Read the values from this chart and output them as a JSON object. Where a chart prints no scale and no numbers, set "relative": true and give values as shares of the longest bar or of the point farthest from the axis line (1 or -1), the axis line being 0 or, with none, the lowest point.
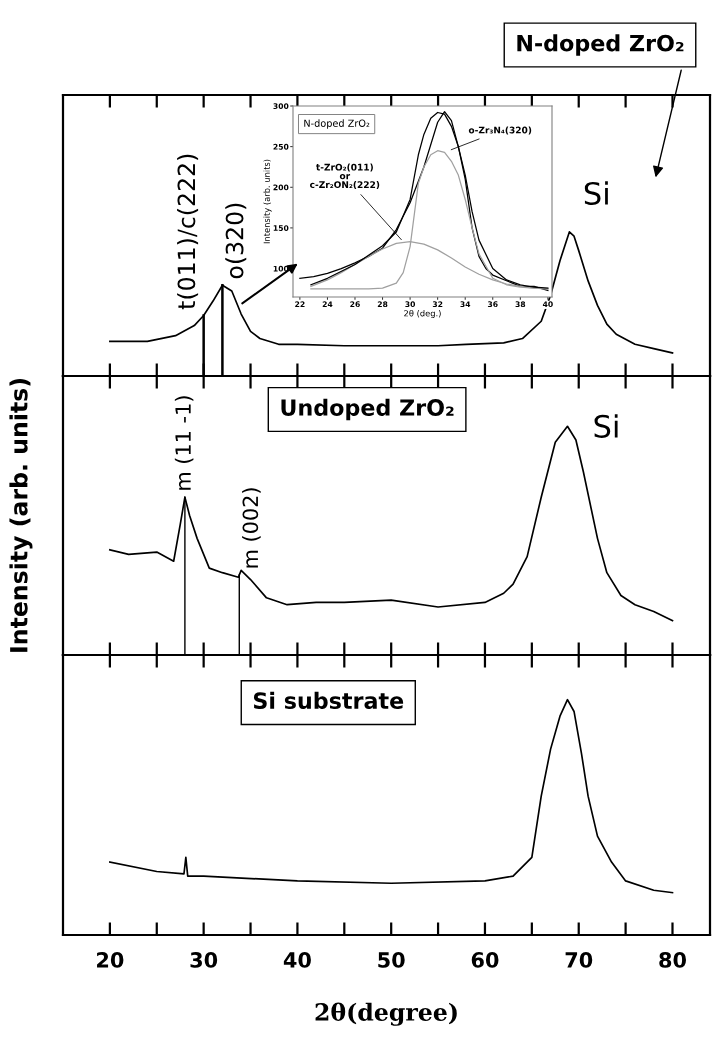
{
  "chart_data": [
    {
      "type": "line",
      "relative": true,
      "tick_labels": false,
      "xlim": [
        15,
        84
      ],
      "xticks": [
        20,
        {
          "value": 25,
          "label": null
        },
        30,
        {
          "value": 35,
          "label": null
        },
        40,
        {
          "value": 45,
          "label": null
        },
        50,
        {
          "value": 55,
          "label": null
        },
        60,
        {
          "value": 65,
          "label": null
        },
        70,
        {
          "value": 75,
          "label": null
        },
        80
      ],
      "x": [
        20,
        24,
        27,
        29,
        30,
        31,
        32,
        33,
        34,
        35,
        36,
        38,
        40,
        45,
        50,
        55,
        58,
        62,
        64,
        66,
        67,
        68,
        69,
        69.5,
        70,
        71,
        72,
        73,
        74,
        76,
        78,
        80
      ],
      "series": [
        {
          "color": "#000000",
          "values": [
            0.24,
            0.24,
            0.28,
            0.35,
            0.42,
            0.52,
            0.63,
            0.59,
            0.43,
            0.31,
            0.26,
            0.22,
            0.22,
            0.21,
            0.21,
            0.21,
            0.22,
            0.23,
            0.26,
            0.38,
            0.56,
            0.8,
            1,
            0.97,
            0.87,
            0.66,
            0.49,
            0.36,
            0.29,
            0.22,
            0.19,
            0.16
          ]
        }
      ],
      "ref_lines": [
        {
          "axis": "x",
          "value": 30,
          "label": "t(011)/c(222)"
        },
        {
          "axis": "x",
          "value": 32,
          "label": "o(320)"
        }
      ],
      "annotations": [
        "N-doped ZrO₂",
        "Si"
      ]
    },
    {
      "type": "line",
      "xlabel": "2θ (deg.)",
      "ylabel": "Intensity (arb. units)",
      "xlim": [
        21.5,
        40.3
      ],
      "xticks": [
        22,
        24,
        26,
        28,
        30,
        32,
        34,
        36,
        38,
        40
      ],
      "ylim": [
        65,
        300
      ],
      "yticks": [
        100,
        150,
        200,
        250,
        300
      ],
      "series": [
        {
          "color": "#000000",
          "x": [
            22,
            23,
            24,
            25,
            26,
            27,
            28,
            29,
            30,
            31,
            32,
            32.5,
            33,
            33.5,
            34,
            34.5,
            35,
            35.5,
            36,
            37,
            38,
            39,
            40
          ],
          "values": [
            88,
            90,
            94,
            100,
            107,
            115,
            125,
            148,
            181,
            225,
            280,
            293,
            282,
            250,
            210,
            150,
            115,
            100,
            92,
            85,
            78,
            78,
            73
          ]
        },
        {
          "color": "#a0a0a0",
          "x": [
            22.8,
            24,
            25,
            26,
            27,
            28,
            29,
            30,
            31,
            32,
            33,
            34,
            35,
            36,
            37,
            38,
            39,
            40
          ],
          "values": [
            78,
            86,
            95,
            105,
            115,
            124,
            131,
            133,
            130,
            123,
            113,
            102,
            93,
            86,
            81,
            78,
            76,
            75
          ]
        },
        {
          "color": "#a0a0a0",
          "x": [
            22.8,
            27,
            28,
            29,
            29.5,
            30,
            30.6,
            31,
            31.5,
            32,
            32.5,
            33,
            33.5,
            34,
            34.5,
            35,
            36,
            37,
            38,
            39,
            40
          ],
          "values": [
            75,
            75,
            76,
            82,
            95,
            127,
            205,
            225,
            240,
            245,
            243,
            232,
            215,
            185,
            150,
            118,
            88,
            80,
            77,
            76,
            75
          ]
        },
        {
          "color": "#000000",
          "x": [
            22.8,
            24,
            26,
            28,
            29,
            30,
            30.6,
            31,
            31.5,
            32,
            32.5,
            33,
            33.5,
            34,
            34.5,
            35,
            36,
            37,
            38,
            39,
            40
          ],
          "values": [
            80,
            88,
            105,
            128,
            145,
            185,
            240,
            265,
            285,
            292,
            290,
            275,
            250,
            215,
            170,
            135,
            100,
            86,
            80,
            77,
            76
          ]
        }
      ],
      "annotations": [
        "N-doped ZrO₂",
        {
          "text": "t-ZrO₂(011)\nor\nc-Zr₂ON₂(222)",
          "x": 29.5,
          "y": 133
        },
        {
          "text": "o-Zr₃N₄(320)",
          "x": 32.8,
          "y": 245
        }
      ]
    },
    {
      "type": "line",
      "relative": true,
      "tick_labels": false,
      "xlim": [
        15,
        84
      ],
      "ylabel": "Intensity (arb. units)",
      "xticks": [
        20,
        {
          "value": 25,
          "label": null
        },
        30,
        {
          "value": 35,
          "label": null
        },
        40,
        {
          "value": 45,
          "label": null
        },
        50,
        {
          "value": 55,
          "label": null
        },
        60,
        {
          "value": 65,
          "label": null
        },
        70,
        {
          "value": 75,
          "label": null
        },
        80
      ],
      "x": [
        20,
        22,
        25,
        26.8,
        27.5,
        28,
        28.5,
        29.3,
        30,
        30.6,
        32,
        33.7,
        34,
        35,
        36.7,
        38.9,
        42,
        45,
        50,
        55,
        60,
        62,
        63,
        64.5,
        66,
        67.5,
        68.8,
        69.7,
        70.5,
        72,
        73,
        74.5,
        76,
        78,
        80
      ],
      "series": [
        {
          "color": "#000000",
          "values": [
            0.46,
            0.44,
            0.45,
            0.41,
            0.57,
            0.69,
            0.61,
            0.51,
            0.44,
            0.38,
            0.36,
            0.34,
            0.37,
            0.33,
            0.25,
            0.22,
            0.23,
            0.23,
            0.24,
            0.21,
            0.23,
            0.27,
            0.31,
            0.43,
            0.69,
            0.93,
            1,
            0.94,
            0.8,
            0.51,
            0.36,
            0.26,
            0.22,
            0.19,
            0.15
          ]
        }
      ],
      "ref_lines": [
        {
          "axis": "x",
          "value": 28,
          "label": "m (11 -1)"
        },
        {
          "axis": "x",
          "value": 33.8,
          "label": "m (002)"
        }
      ],
      "annotations": [
        "Undoped ZrO₂",
        "Si"
      ]
    },
    {
      "type": "line",
      "relative": true,
      "tick_labels": "x",
      "xlim": [
        15,
        84
      ],
      "xlabel": "2θ(degree)",
      "xticks": [
        20,
        {
          "value": 25,
          "label": null
        },
        30,
        {
          "value": 35,
          "label": null
        },
        40,
        {
          "value": 45,
          "label": null
        },
        50,
        {
          "value": 55,
          "label": null
        },
        60,
        {
          "value": 65,
          "label": null
        },
        70,
        {
          "value": 75,
          "label": null
        },
        80
      ],
      "x": [
        20,
        25,
        27.9,
        28.1,
        28.3,
        30,
        40,
        50,
        60,
        63,
        65,
        66,
        67,
        68,
        68.8,
        69.5,
        70.3,
        71,
        72,
        73.5,
        75,
        78,
        80
      ],
      "series": [
        {
          "color": "#000000",
          "values": [
            0.31,
            0.27,
            0.26,
            0.33,
            0.25,
            0.25,
            0.23,
            0.22,
            0.23,
            0.25,
            0.33,
            0.59,
            0.79,
            0.93,
            1,
            0.95,
            0.77,
            0.59,
            0.42,
            0.31,
            0.23,
            0.19,
            0.18
          ]
        }
      ],
      "annotations": [
        "Si substrate"
      ]
    }
  ]
}
